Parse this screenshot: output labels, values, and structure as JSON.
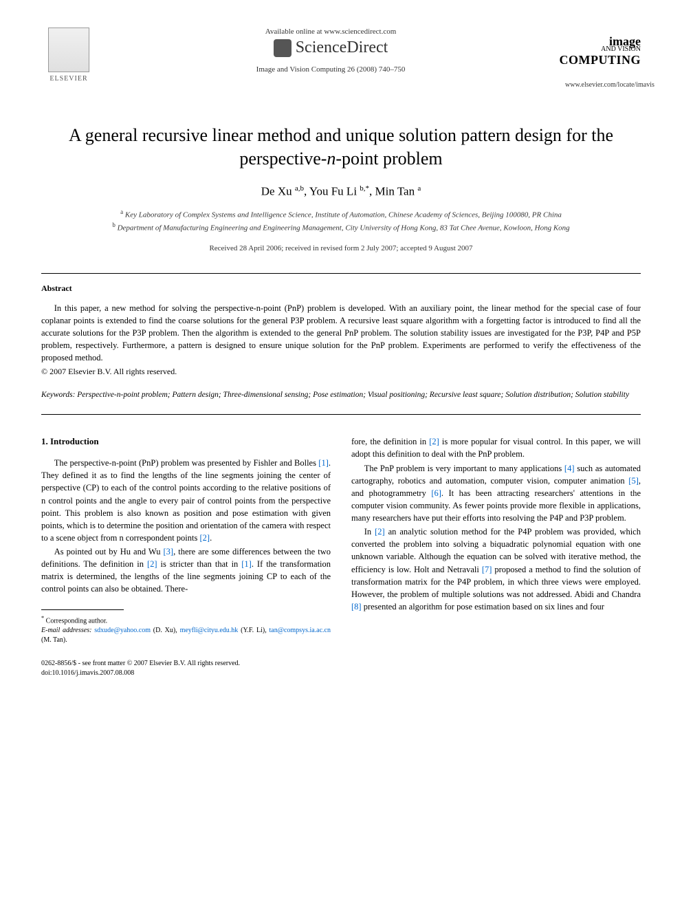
{
  "header": {
    "available_text": "Available online at www.sciencedirect.com",
    "sciencedirect": "ScienceDirect",
    "citation": "Image and Vision Computing 26 (2008) 740–750",
    "publisher_name": "ELSEVIER",
    "journal_logo_line1": "image",
    "journal_logo_line2": "AND VISION",
    "journal_logo_line3": "COMPUTING",
    "journal_url": "www.elsevier.com/locate/imavis"
  },
  "article": {
    "title": "A general recursive linear method and unique solution pattern design for the perspective-n-point problem",
    "authors_html": "De Xu <sup>a,b</sup>, You Fu Li <sup>b,*</sup>, Min Tan <sup>a</sup>",
    "affiliation_a": "Key Laboratory of Complex Systems and Intelligence Science, Institute of Automation, Chinese Academy of Sciences, Beijing 100080, PR China",
    "affiliation_b": "Department of Manufacturing Engineering and Engineering Management, City University of Hong Kong, 83 Tat Chee Avenue, Kowloon, Hong Kong",
    "dates": "Received 28 April 2006; received in revised form 2 July 2007; accepted 9 August 2007"
  },
  "abstract": {
    "heading": "Abstract",
    "text": "In this paper, a new method for solving the perspective-n-point (PnP) problem is developed. With an auxiliary point, the linear method for the special case of four coplanar points is extended to find the coarse solutions for the general P3P problem. A recursive least square algorithm with a forgetting factor is introduced to find all the accurate solutions for the P3P problem. Then the algorithm is extended to the general PnP problem. The solution stability issues are investigated for the P3P, P4P and P5P problem, respectively. Furthermore, a pattern is designed to ensure unique solution for the PnP problem. Experiments are performed to verify the effectiveness of the proposed method.",
    "copyright": "© 2007 Elsevier B.V. All rights reserved."
  },
  "keywords": {
    "label": "Keywords:",
    "text": "Perspective-n-point problem; Pattern design; Three-dimensional sensing; Pose estimation; Visual positioning; Recursive least square; Solution distribution; Solution stability"
  },
  "body": {
    "section1_heading": "1. Introduction",
    "col1_p1_a": "The perspective-n-point (PnP) problem was presented by Fishler and Bolles ",
    "col1_p1_ref1": "[1]",
    "col1_p1_b": ". They defined it as to find the lengths of the line segments joining the center of perspective (CP) to each of the control points according to the relative positions of n control points and the angle to every pair of control points from the perspective point. This problem is also known as position and pose estimation with given points, which is to determine the position and orientation of the camera with respect to a scene object from n correspondent points ",
    "col1_p1_ref2": "[2]",
    "col1_p1_c": ".",
    "col1_p2_a": "As pointed out by Hu and Wu ",
    "col1_p2_ref3": "[3]",
    "col1_p2_b": ", there are some differences between the two definitions. The definition in ",
    "col1_p2_ref2a": "[2]",
    "col1_p2_c": " is stricter than that in ",
    "col1_p2_ref1": "[1]",
    "col1_p2_d": ". If the transformation matrix is determined, the lengths of the line segments joining CP to each of the control points can also be obtained. There-",
    "col2_p1_a": "fore, the definition in ",
    "col2_p1_ref2": "[2]",
    "col2_p1_b": " is more popular for visual control. In this paper, we will adopt this definition to deal with the PnP problem.",
    "col2_p2_a": "The PnP problem is very important to many applications ",
    "col2_p2_ref4": "[4]",
    "col2_p2_b": " such as automated cartography, robotics and automation, computer vision, computer animation ",
    "col2_p2_ref5": "[5]",
    "col2_p2_c": ", and photogrammetry ",
    "col2_p2_ref6": "[6]",
    "col2_p2_d": ". It has been attracting researchers' attentions in the computer vision community. As fewer points provide more flexible in applications, many researchers have put their efforts into resolving the P4P and P3P problem.",
    "col2_p3_a": "In ",
    "col2_p3_ref2": "[2]",
    "col2_p3_b": " an analytic solution method for the P4P problem was provided, which converted the problem into solving a biquadratic polynomial equation with one unknown variable. Although the equation can be solved with iterative method, the efficiency is low. Holt and Netravali ",
    "col2_p3_ref7": "[7]",
    "col2_p3_c": " proposed a method to find the solution of transformation matrix for the P4P problem, in which three views were employed. However, the problem of multiple solutions was not addressed. Abidi and Chandra ",
    "col2_p3_ref8": "[8]",
    "col2_p3_d": " presented an algorithm for pose estimation based on six lines and four"
  },
  "footnotes": {
    "corresponding": "Corresponding author.",
    "email_label": "E-mail addresses:",
    "email1": "sdxude@yahoo.com",
    "email1_attr": " (D. Xu), ",
    "email2": "meyfli@cityu.edu.hk",
    "email2_attr": " (Y.F. Li), ",
    "email3": "tan@compsys.ia.ac.cn",
    "email3_attr": " (M. Tan)."
  },
  "footer": {
    "line1": "0262-8856/$ - see front matter © 2007 Elsevier B.V. All rights reserved.",
    "line2": "doi:10.1016/j.imavis.2007.08.008"
  },
  "colors": {
    "link_color": "#0066cc",
    "text_color": "#000000",
    "background": "#ffffff"
  }
}
